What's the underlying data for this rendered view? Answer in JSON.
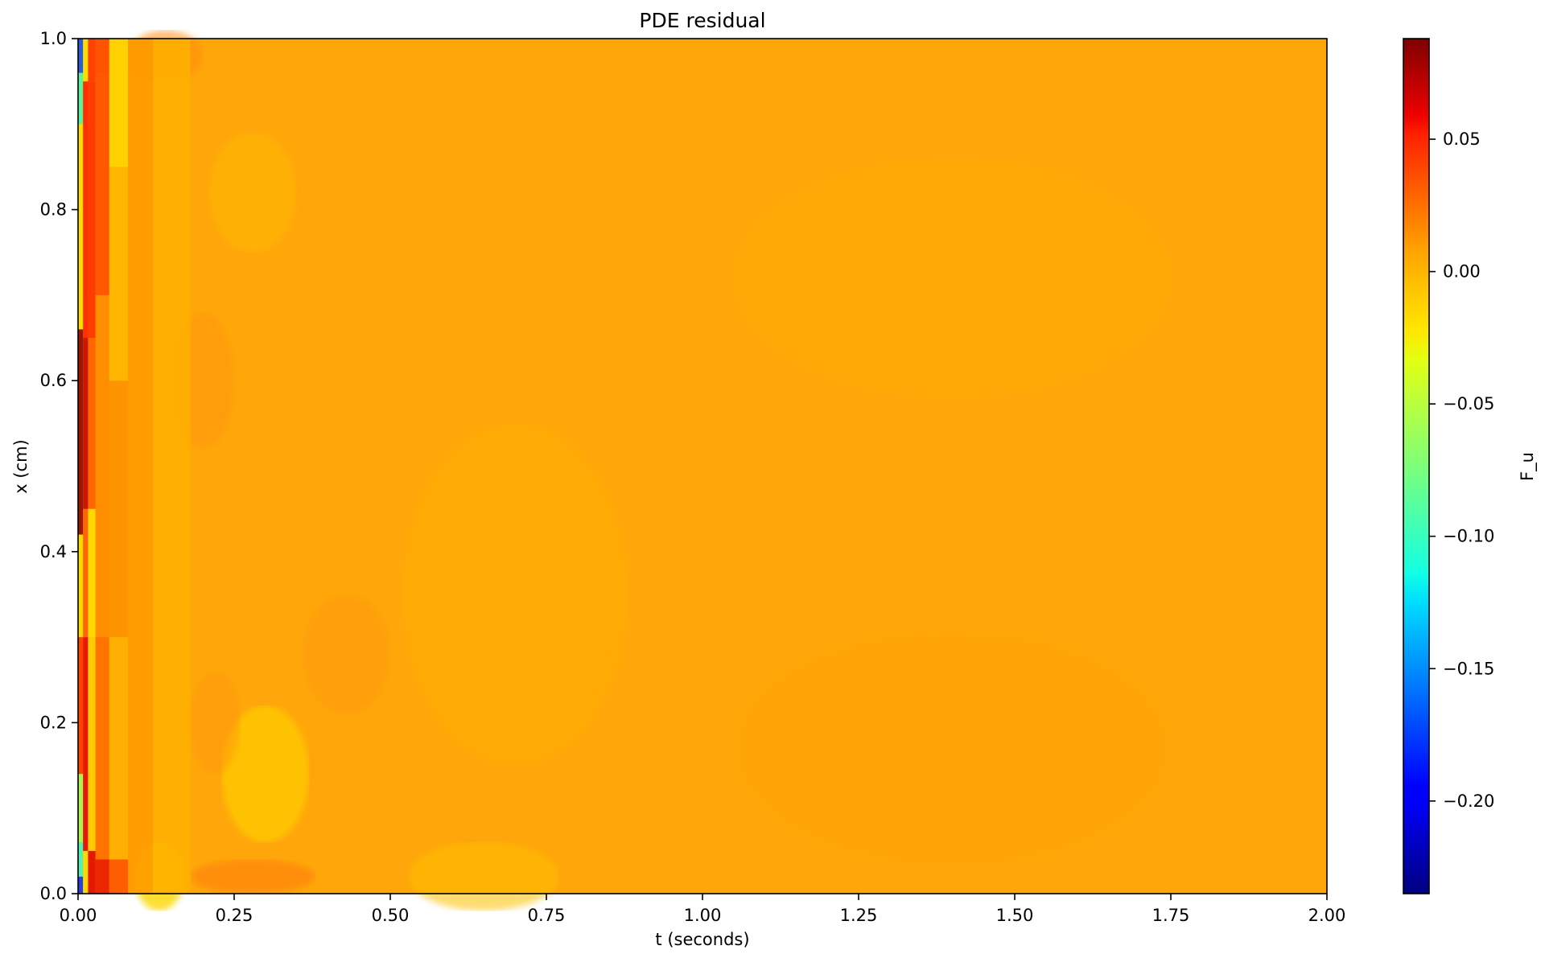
{
  "chart_data": {
    "type": "heatmap",
    "title": "PDE residual",
    "xlabel": "t (seconds)",
    "ylabel": "x (cm)",
    "xlim": [
      0.0,
      2.0
    ],
    "ylim": [
      0.0,
      1.0
    ],
    "x_ticks": [
      "0.00",
      "0.25",
      "0.50",
      "0.75",
      "1.00",
      "1.25",
      "1.50",
      "1.75",
      "2.00"
    ],
    "y_ticks": [
      "0.0",
      "0.2",
      "0.4",
      "0.6",
      "0.8",
      "1.0"
    ],
    "x_tick_values": [
      0,
      0.25,
      0.5,
      0.75,
      1.0,
      1.25,
      1.5,
      1.75,
      2.0
    ],
    "y_tick_values": [
      0,
      0.2,
      0.4,
      0.6,
      0.8,
      1.0
    ],
    "colormap": "jet",
    "colorbar": {
      "label": "F_u",
      "vmin": -0.235,
      "vmax": 0.088,
      "ticks": [
        "0.05",
        "0.00",
        "−0.05",
        "−0.10",
        "−0.15",
        "−0.20"
      ],
      "tick_values": [
        0.05,
        0.0,
        -0.05,
        -0.1,
        -0.15,
        -0.2
      ]
    },
    "grid": false
  }
}
